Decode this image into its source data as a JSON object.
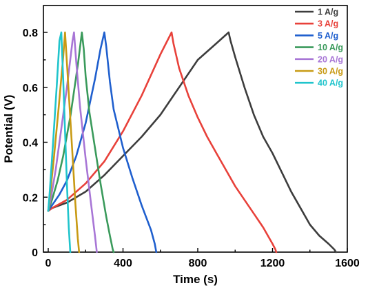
{
  "chart_data": {
    "type": "line",
    "title": "",
    "xlabel": "Time (s)",
    "ylabel": "Potential (V)",
    "xlim": [
      0,
      1600
    ],
    "ylim": [
      0,
      0.9
    ],
    "xticks": [
      0,
      400,
      800,
      1200,
      1600
    ],
    "yticks": [
      0,
      0.2,
      0.4,
      0.6,
      0.8
    ],
    "xtick_labels": [
      "0",
      "400",
      "800",
      "1200",
      "1600"
    ],
    "ytick_labels": [
      "0",
      "0.2",
      "0.4",
      "0.6",
      "0.8"
    ],
    "grid": false,
    "legend_position": "top-right",
    "series": [
      {
        "name": "1 A/g",
        "color": "#3d3d3d",
        "x": [
          0,
          20,
          100,
          200,
          300,
          400,
          500,
          600,
          700,
          800,
          900,
          965,
          975,
          1000,
          1050,
          1100,
          1150,
          1200,
          1250,
          1300,
          1350,
          1400,
          1450,
          1500,
          1530,
          1540
        ],
        "y": [
          0.15,
          0.16,
          0.18,
          0.22,
          0.28,
          0.35,
          0.42,
          0.5,
          0.6,
          0.7,
          0.76,
          0.8,
          0.77,
          0.71,
          0.6,
          0.5,
          0.42,
          0.36,
          0.29,
          0.22,
          0.16,
          0.1,
          0.06,
          0.03,
          0.01,
          0.0
        ]
      },
      {
        "name": "3 A/g",
        "color": "#e8413a",
        "x": [
          0,
          20,
          100,
          200,
          300,
          400,
          500,
          600,
          660,
          670,
          700,
          750,
          800,
          850,
          900,
          950,
          1000,
          1050,
          1100,
          1150,
          1200,
          1215,
          1220
        ],
        "y": [
          0.15,
          0.16,
          0.19,
          0.25,
          0.33,
          0.44,
          0.57,
          0.72,
          0.8,
          0.76,
          0.67,
          0.57,
          0.49,
          0.42,
          0.36,
          0.3,
          0.24,
          0.19,
          0.14,
          0.09,
          0.03,
          0.01,
          0.0
        ]
      },
      {
        "name": "5 A/g",
        "color": "#1f5fce",
        "x": [
          0,
          20,
          60,
          100,
          150,
          200,
          250,
          280,
          300,
          310,
          330,
          350,
          400,
          450,
          500,
          550,
          570,
          578
        ],
        "y": [
          0.15,
          0.17,
          0.21,
          0.26,
          0.35,
          0.47,
          0.63,
          0.74,
          0.8,
          0.75,
          0.62,
          0.52,
          0.38,
          0.27,
          0.17,
          0.08,
          0.03,
          0.0
        ]
      },
      {
        "name": "10 A/g",
        "color": "#3a9a5b",
        "x": [
          0,
          20,
          50,
          80,
          120,
          160,
          180,
          190,
          200,
          220,
          250,
          280,
          310,
          330,
          345,
          350
        ],
        "y": [
          0.15,
          0.19,
          0.26,
          0.35,
          0.5,
          0.69,
          0.8,
          0.74,
          0.64,
          0.51,
          0.38,
          0.25,
          0.13,
          0.06,
          0.01,
          0.0
        ]
      },
      {
        "name": "20 A/g",
        "color": "#a876d6",
        "x": [
          0,
          15,
          40,
          70,
          100,
          130,
          138,
          150,
          170,
          200,
          230,
          250,
          260
        ],
        "y": [
          0.15,
          0.2,
          0.3,
          0.45,
          0.6,
          0.77,
          0.8,
          0.69,
          0.53,
          0.34,
          0.17,
          0.06,
          0.0
        ]
      },
      {
        "name": "30 A/g",
        "color": "#c89a14",
        "x": [
          0,
          10,
          30,
          55,
          80,
          90,
          100,
          115,
          130,
          145,
          158,
          165
        ],
        "y": [
          0.15,
          0.21,
          0.34,
          0.52,
          0.71,
          0.8,
          0.69,
          0.52,
          0.35,
          0.18,
          0.05,
          0.0
        ]
      },
      {
        "name": "40 A/g",
        "color": "#20c4cc",
        "x": [
          0,
          8,
          25,
          45,
          60,
          70,
          80,
          90,
          100,
          110,
          118
        ],
        "y": [
          0.15,
          0.22,
          0.39,
          0.6,
          0.77,
          0.8,
          0.63,
          0.44,
          0.25,
          0.09,
          0.0
        ]
      }
    ]
  }
}
